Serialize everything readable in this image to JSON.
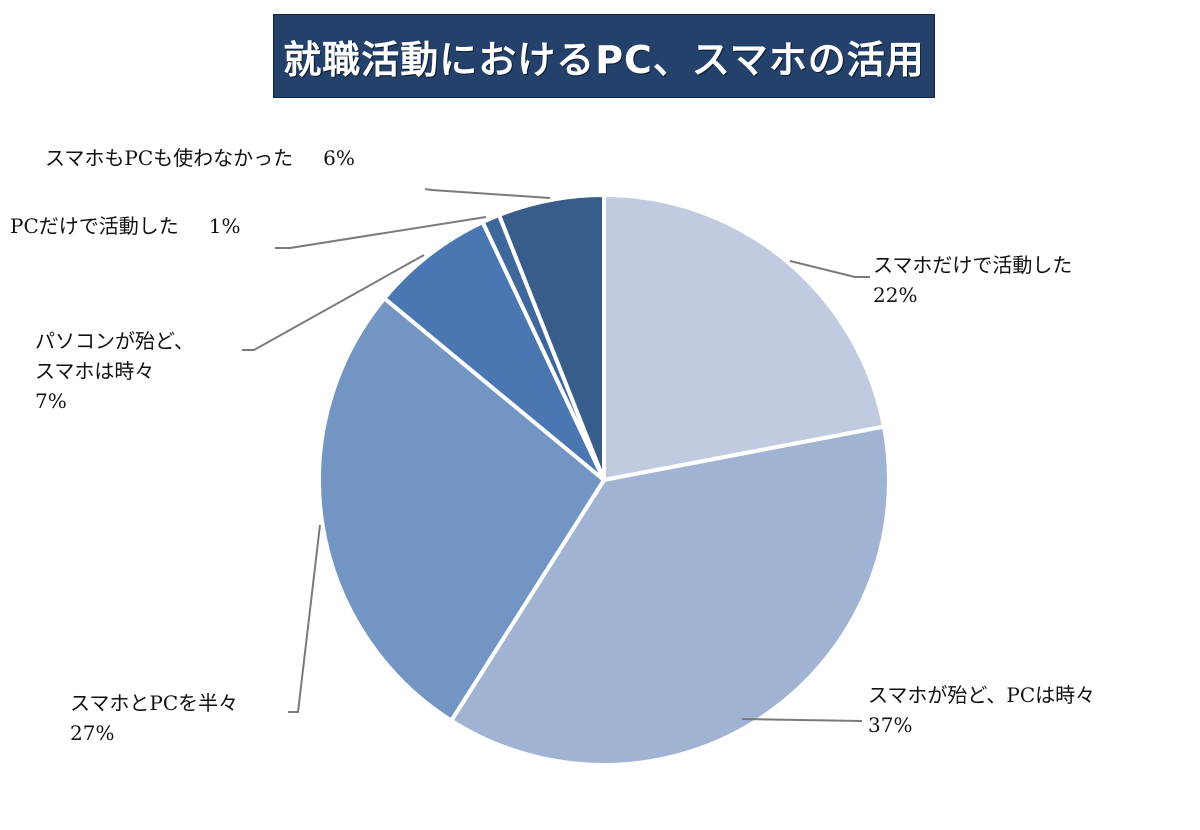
{
  "title": "就職活動におけるPC、スマホの活用",
  "chart_data": {
    "type": "pie",
    "title": "就職活動におけるPC、スマホの活用",
    "start_angle_deg": 0,
    "direction": "clockwise",
    "legend": "none (data labels with leader lines)",
    "slices": [
      {
        "label": "スマホだけで活動した",
        "value": 22,
        "display": "22%",
        "color": "#c0cbe1"
      },
      {
        "label": "スマホが殆ど、PCは時々",
        "value": 37,
        "display": "37%",
        "color": "#a0b3d3"
      },
      {
        "label": "スマホとPCを半々",
        "value": 27,
        "display": "27%",
        "color": "#7395c4"
      },
      {
        "label": "パソコンが殆ど、スマホは時々",
        "value": 7,
        "display": "7%",
        "color": "#4a77b2"
      },
      {
        "label": "PCだけで活動した",
        "value": 1,
        "display": "1%",
        "color": "#3e679c"
      },
      {
        "label": "スマホもPCも使わなかった",
        "value": 6,
        "display": "6%",
        "color": "#385d8a"
      }
    ]
  },
  "labels": {
    "only_phone": {
      "line1": "スマホだけで活動した",
      "pct": "22%"
    },
    "mostly_phone": {
      "line1": "スマホが殆ど、PCは時々",
      "pct": "37%"
    },
    "half_half": {
      "line1": "スマホとPCを半々",
      "pct": "27%"
    },
    "mostly_pc": {
      "line1": "パソコンが殆ど、",
      "line2": "スマホは時々",
      "pct": "7%"
    },
    "only_pc": {
      "line1": "PCだけで活動した",
      "pct": "1%"
    },
    "neither": {
      "line1": "スマホもPCも使わなかった",
      "pct": "6%"
    }
  }
}
